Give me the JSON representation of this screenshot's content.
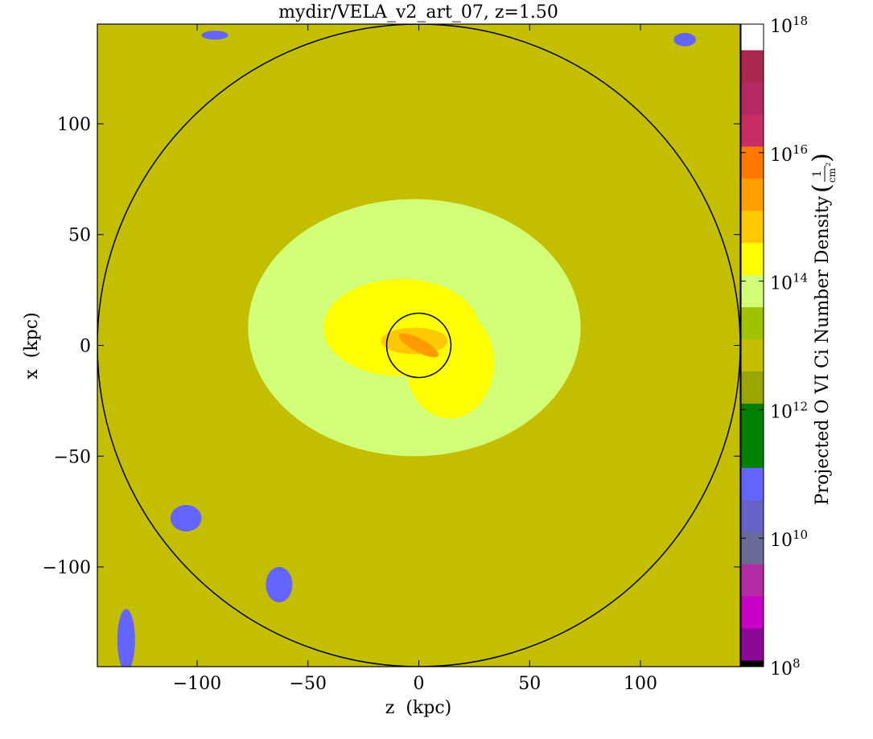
{
  "chart_data": {
    "type": "heatmap",
    "title": "mydir/VELA_v2_art_07, z=1.50",
    "xlabel": "z  (kpc)",
    "ylabel": "x  (kpc)",
    "xlim": [
      -145,
      145
    ],
    "ylim": [
      -145,
      145
    ],
    "x_ticks": [
      -100,
      -50,
      0,
      50,
      100
    ],
    "y_ticks": [
      -100,
      -50,
      0,
      50,
      100
    ],
    "x_tick_labels": [
      "−100",
      "−50",
      "0",
      "50",
      "100"
    ],
    "y_tick_labels": [
      "−100",
      "−50",
      "0",
      "50",
      "100"
    ],
    "grid": false,
    "circles_kpc": [
      145,
      14.5
    ],
    "colorbar": {
      "label": "Projected O VI Ci Number Density",
      "unit_numerator": "1",
      "unit_denominator": "cm",
      "unit_exponent": "2",
      "scale": "log",
      "range_exponent": [
        8,
        18
      ],
      "tick_exponents": [
        8,
        10,
        12,
        14,
        16,
        18
      ],
      "tick_base": "10",
      "bands": [
        {
          "from": 8.0,
          "to": 8.1,
          "color": "#000000"
        },
        {
          "from": 8.1,
          "to": 8.6,
          "color": "#8a0a96"
        },
        {
          "from": 8.6,
          "to": 9.1,
          "color": "#c800c8"
        },
        {
          "from": 9.1,
          "to": 9.6,
          "color": "#b52aa5"
        },
        {
          "from": 9.6,
          "to": 10.1,
          "color": "#6a6a96"
        },
        {
          "from": 10.1,
          "to": 10.6,
          "color": "#6464c8"
        },
        {
          "from": 10.6,
          "to": 11.1,
          "color": "#6464ff"
        },
        {
          "from": 11.1,
          "to": 11.6,
          "color": "#008000"
        },
        {
          "from": 11.6,
          "to": 12.1,
          "color": "#008000"
        },
        {
          "from": 12.1,
          "to": 12.6,
          "color": "#9aa500"
        },
        {
          "from": 12.6,
          "to": 13.1,
          "color": "#c3be00"
        },
        {
          "from": 13.1,
          "to": 13.6,
          "color": "#a0c300"
        },
        {
          "from": 13.6,
          "to": 14.1,
          "color": "#d2ff78"
        },
        {
          "from": 14.1,
          "to": 14.6,
          "color": "#ffff00"
        },
        {
          "from": 14.6,
          "to": 15.1,
          "color": "#ffc800"
        },
        {
          "from": 15.1,
          "to": 15.6,
          "color": "#ffa000"
        },
        {
          "from": 15.6,
          "to": 16.1,
          "color": "#ff7800"
        },
        {
          "from": 16.1,
          "to": 16.6,
          "color": "#c82c64"
        },
        {
          "from": 16.6,
          "to": 17.1,
          "color": "#b42864"
        },
        {
          "from": 17.1,
          "to": 17.6,
          "color": "#aa2850"
        },
        {
          "from": 17.6,
          "to": 18.0,
          "color": "#ffffff"
        }
      ]
    },
    "value_regions": [
      {
        "name": "background",
        "log_value": 12.7,
        "color": "#c3be00",
        "z": 0,
        "x": 0,
        "rz": 145,
        "rx": 145
      },
      {
        "name": "diffuse-halo",
        "log_value": 13.9,
        "color": "#d2ff78",
        "z": -2,
        "x": 8,
        "rz": 75,
        "rx": 58
      },
      {
        "name": "inner-halo",
        "log_value": 14.3,
        "color": "#ffff00",
        "z": -8,
        "x": 8,
        "rz": 35,
        "rx": 22
      },
      {
        "name": "inner-halo-east",
        "log_value": 14.3,
        "color": "#ffff00",
        "z": 14,
        "x": -8,
        "rz": 20,
        "rx": 25
      },
      {
        "name": "core",
        "log_value": 15.0,
        "color": "#ffc800",
        "z": -2,
        "x": 2,
        "rz": 15,
        "rx": 6
      },
      {
        "name": "disk",
        "log_value": 15.4,
        "color": "#ff9a00",
        "z": 0,
        "x": 0,
        "rz": 10,
        "rx": 3
      },
      {
        "name": "low-column-clump-1",
        "log_value": 10.8,
        "color": "#6464ff",
        "z": -105,
        "x": -78,
        "rz": 7,
        "rx": 6
      },
      {
        "name": "low-column-clump-2",
        "log_value": 10.8,
        "color": "#6464ff",
        "z": -63,
        "x": -108,
        "rz": 6,
        "rx": 8
      },
      {
        "name": "low-column-clump-3",
        "log_value": 10.8,
        "color": "#6464ff",
        "z": -132,
        "x": -133,
        "rz": 4,
        "rx": 14
      },
      {
        "name": "low-column-clump-4",
        "log_value": 10.8,
        "color": "#6464ff",
        "z": 120,
        "x": 138,
        "rz": 5,
        "rx": 3
      },
      {
        "name": "low-column-clump-5",
        "log_value": 10.8,
        "color": "#6464ff",
        "z": -92,
        "x": 140,
        "rz": 6,
        "rx": 2
      }
    ]
  }
}
